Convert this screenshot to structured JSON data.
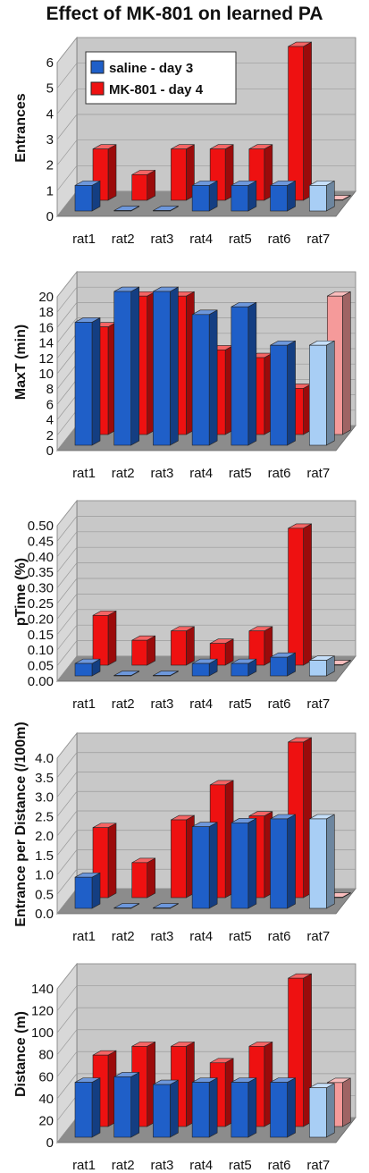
{
  "title": "Effect of MK-801 on learned PA",
  "colors": {
    "saline": "#1f5fc8",
    "mk801": "#ee1111",
    "rat7_saline": "#a8cef5",
    "rat7_mk801": "#f59a9a",
    "wall": "#c8c8c8",
    "floor": "#8c8c8c"
  },
  "legend": {
    "saline": "saline - day 3",
    "mk801": "MK-801 - day 4"
  },
  "chart_data": [
    {
      "type": "bar",
      "ylabel": "Entrances",
      "categories": [
        "rat1",
        "rat2",
        "rat3",
        "rat4",
        "rat5",
        "rat6",
        "rat7"
      ],
      "ylim": [
        0,
        6
      ],
      "ticks": [
        "0",
        "1",
        "2",
        "3",
        "4",
        "5",
        "6"
      ],
      "series": [
        {
          "name": "saline - day 3",
          "values": [
            1,
            0,
            0,
            1,
            1,
            1,
            1
          ]
        },
        {
          "name": "MK-801 - day 4",
          "values": [
            2,
            1,
            2,
            2,
            2,
            6,
            0
          ]
        }
      ],
      "legend": "top-left"
    },
    {
      "type": "bar",
      "ylabel": "MaxT (min)",
      "categories": [
        "rat1",
        "rat2",
        "rat3",
        "rat4",
        "rat5",
        "rat6",
        "rat7"
      ],
      "ylim": [
        0,
        20
      ],
      "ticks": [
        "0",
        "2",
        "4",
        "6",
        "8",
        "10",
        "12",
        "14",
        "16",
        "18",
        "20"
      ],
      "series": [
        {
          "name": "saline - day 3",
          "values": [
            16,
            20,
            20,
            17,
            18,
            13,
            13
          ]
        },
        {
          "name": "MK-801 - day 4",
          "values": [
            14,
            18,
            18,
            11,
            10,
            6,
            18
          ]
        }
      ]
    },
    {
      "type": "bar",
      "ylabel": "pTime (%)",
      "categories": [
        "rat1",
        "rat2",
        "rat3",
        "rat4",
        "rat5",
        "rat6",
        "rat7"
      ],
      "ylim": [
        0,
        0.5
      ],
      "ticks": [
        "0.00",
        "0.05",
        "0.10",
        "0.15",
        "0.20",
        "0.25",
        "0.30",
        "0.35",
        "0.40",
        "0.45",
        "0.50"
      ],
      "series": [
        {
          "name": "saline - day 3",
          "values": [
            0.04,
            0,
            0,
            0.04,
            0.04,
            0.06,
            0.05
          ]
        },
        {
          "name": "MK-801 - day 4",
          "values": [
            0.16,
            0.08,
            0.11,
            0.07,
            0.11,
            0.44,
            0
          ]
        }
      ]
    },
    {
      "type": "bar",
      "ylabel": "Entrance per Distance (/100m)",
      "categories": [
        "rat1",
        "rat2",
        "rat3",
        "rat4",
        "rat5",
        "rat6",
        "rat7"
      ],
      "ylim": [
        0,
        4
      ],
      "ticks": [
        "0.0",
        "0.5",
        "1.0",
        "1.5",
        "2.0",
        "2.5",
        "3.0",
        "3.5",
        "4.0"
      ],
      "series": [
        {
          "name": "saline - day 3",
          "values": [
            0.8,
            0,
            0,
            2.1,
            2.2,
            2.3,
            2.3
          ]
        },
        {
          "name": "MK-801 - day 4",
          "values": [
            1.8,
            0.9,
            2.0,
            2.9,
            2.1,
            4.0,
            0
          ]
        }
      ]
    },
    {
      "type": "bar",
      "ylabel": "Distance (m)",
      "categories": [
        "rat1",
        "rat2",
        "rat3",
        "rat4",
        "rat5",
        "rat6",
        "rat7"
      ],
      "ylim": [
        0,
        140
      ],
      "ticks": [
        "0",
        "20",
        "40",
        "60",
        "80",
        "100",
        "120",
        "140"
      ],
      "series": [
        {
          "name": "saline - day 3",
          "values": [
            50,
            55,
            48,
            50,
            50,
            50,
            45
          ]
        },
        {
          "name": "MK-801 - day 4",
          "values": [
            65,
            73,
            73,
            58,
            73,
            135,
            40
          ]
        }
      ]
    }
  ]
}
